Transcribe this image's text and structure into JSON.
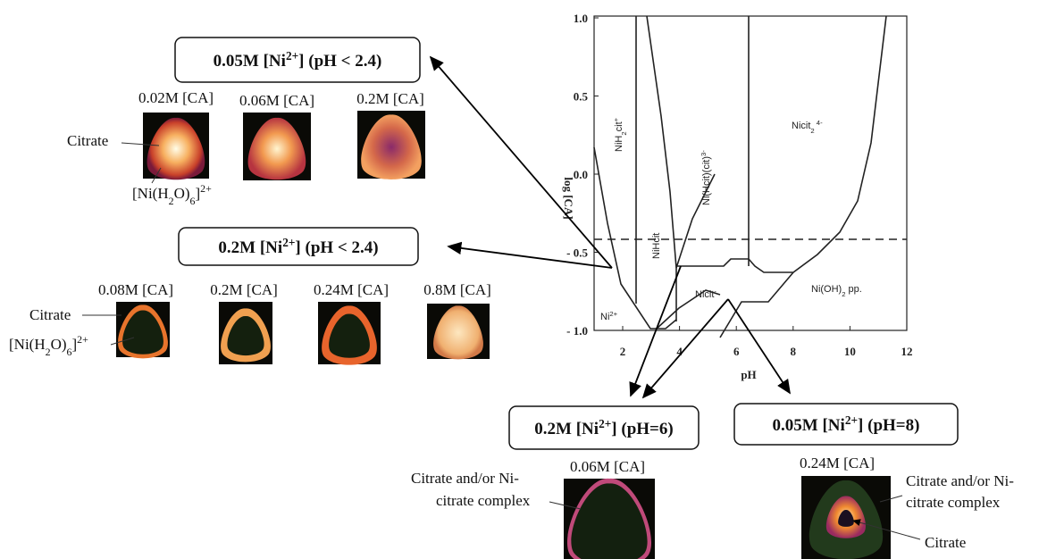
{
  "phase_diagram": {
    "x_label": "pH",
    "y_label": "log [CA]",
    "x_ticks": [
      "2",
      "4",
      "6",
      "8",
      "10",
      "12"
    ],
    "y_ticks": [
      "1.0",
      "0.5",
      "0.0",
      "- 0.5",
      "- 1.0"
    ],
    "regions": {
      "nih2cit": [
        "NiH",
        "2",
        "cit",
        "+"
      ],
      "nihcit": "NiHcit",
      "nihcitcit": [
        "Ni(Hcit)(cit)",
        "3-"
      ],
      "nicit2": [
        "Nicit",
        "2",
        " 4-"
      ],
      "nicit": [
        "Nicit",
        "-"
      ],
      "nioh2": [
        "Ni(OH)",
        "2",
        " pp."
      ],
      "ni": [
        "Ni",
        "2+"
      ]
    }
  },
  "panels": {
    "top": {
      "box": [
        "0.05M [Ni",
        "2+",
        "] (pH < 2.4)"
      ],
      "images": [
        "0.02M [CA]",
        "0.06M [CA]",
        "0.2M [CA]"
      ],
      "citrate": "Citrate",
      "aqua": [
        "[Ni(H",
        "2",
        "O)",
        "6",
        "]",
        "2+"
      ]
    },
    "middle": {
      "box": [
        "0.2M [Ni",
        "2+",
        "] (pH < 2.4)"
      ],
      "images": [
        "0.08M [CA]",
        "0.2M [CA]",
        "0.24M [CA]",
        "0.8M [CA]"
      ],
      "citrate": "Citrate",
      "aqua": [
        "[Ni(H",
        "2",
        "O)",
        "6",
        "]",
        "2+"
      ]
    },
    "ph6": {
      "box": [
        "0.2M [Ni",
        "2+",
        "] (pH=6)"
      ],
      "image": "0.06M [CA]",
      "note": [
        "Citrate and/or Ni-",
        "citrate complex"
      ]
    },
    "ph8": {
      "box": [
        "0.05M [Ni",
        "2+",
        "] (pH=8)"
      ],
      "image": "0.24M [CA]",
      "note": [
        "Citrate and/or Ni-",
        "citrate complex"
      ],
      "citrate": "Citrate"
    }
  }
}
